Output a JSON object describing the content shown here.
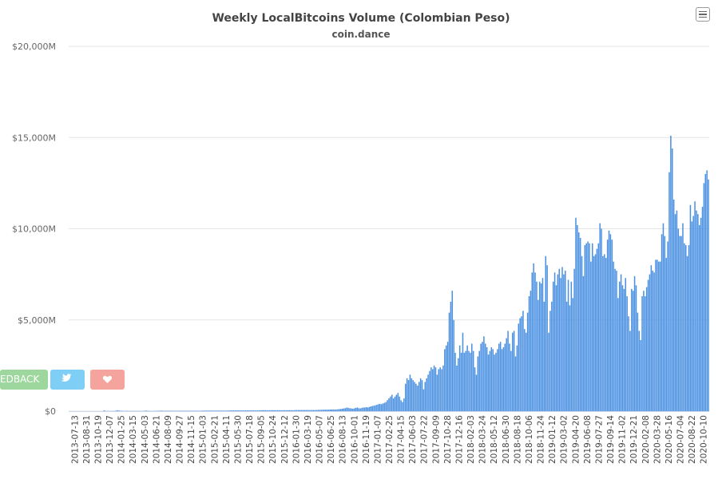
{
  "header": {
    "title": "Weekly LocalBitcoins Volume (Colombian Peso)",
    "subtitle": "coin.dance"
  },
  "buttons": {
    "feedback_label": "EDBACK",
    "twitter_icon": "twitter-icon",
    "heart_icon": "heart-icon"
  },
  "colors": {
    "bar": "#4a90e2",
    "grid": "#e6e6e6",
    "feedback": "#9ed79e",
    "twitter": "#7ecef5",
    "heart": "#f4a49c"
  },
  "chart_data": {
    "type": "bar",
    "title": "Weekly LocalBitcoins Volume (Colombian Peso)",
    "subtitle": "coin.dance",
    "xlabel": "",
    "ylabel": "",
    "ylim": [
      0,
      20000
    ],
    "y_unit": "M",
    "y_tick_labels": [
      "$0",
      "$5,000M",
      "$10,000M",
      "$15,000M",
      "$20,000M"
    ],
    "y_ticks": [
      0,
      5000,
      10000,
      15000,
      20000
    ],
    "x_tick_labels": [
      "2013-07-13",
      "2013-08-31",
      "2013-10-19",
      "2013-12-07",
      "2014-01-25",
      "2014-03-15",
      "2014-05-03",
      "2014-06-21",
      "2014-08-09",
      "2014-09-27",
      "2014-11-15",
      "2015-01-03",
      "2015-02-21",
      "2015-04-11",
      "2015-05-30",
      "2015-07-18",
      "2015-09-05",
      "2015-10-24",
      "2015-12-12",
      "2016-01-30",
      "2016-03-19",
      "2016-05-07",
      "2016-06-25",
      "2016-08-13",
      "2016-10-01",
      "2016-11-19",
      "2017-01-07",
      "2017-02-25",
      "2017-04-15",
      "2017-06-03",
      "2017-07-22",
      "2017-09-09",
      "2017-10-28",
      "2017-12-16",
      "2018-02-03",
      "2018-03-24",
      "2018-05-12",
      "2018-06-30",
      "2018-08-18",
      "2018-10-06",
      "2018-11-24",
      "2019-01-12",
      "2019-03-02",
      "2019-04-20",
      "2019-06-08",
      "2019-07-27",
      "2019-09-14",
      "2019-11-02",
      "2019-12-21",
      "2020-02-08",
      "2020-03-28",
      "2020-05-16",
      "2020-07-04",
      "2020-08-22",
      "2020-10-10"
    ],
    "grid": true,
    "legend": "none",
    "series": [
      {
        "values": [
          0,
          0,
          0,
          0,
          0,
          0,
          0,
          0,
          0,
          0,
          0,
          0,
          0,
          0,
          0,
          0,
          0,
          0,
          0,
          0,
          0,
          0,
          0,
          40,
          15,
          10,
          5,
          10,
          10,
          10,
          10,
          30,
          40,
          30,
          20,
          20,
          10,
          10,
          20,
          10,
          10,
          10,
          10,
          10,
          10,
          10,
          10,
          10,
          10,
          10,
          20,
          30,
          20,
          10,
          10,
          10,
          10,
          10,
          20,
          20,
          20,
          30,
          20,
          20,
          20,
          20,
          20,
          20,
          20,
          20,
          20,
          20,
          20,
          20,
          20,
          20,
          20,
          20,
          20,
          20,
          20,
          20,
          20,
          20,
          20,
          20,
          20,
          20,
          30,
          30,
          30,
          30,
          30,
          30,
          30,
          30,
          30,
          30,
          30,
          30,
          30,
          30,
          30,
          30,
          30,
          30,
          40,
          40,
          40,
          40,
          40,
          40,
          40,
          40,
          40,
          40,
          40,
          40,
          40,
          40,
          40,
          40,
          40,
          40,
          40,
          40,
          40,
          50,
          50,
          50,
          50,
          50,
          50,
          50,
          50,
          50,
          50,
          50,
          50,
          50,
          50,
          50,
          50,
          50,
          50,
          50,
          50,
          50,
          50,
          50,
          60,
          60,
          60,
          60,
          60,
          60,
          60,
          60,
          60,
          60,
          60,
          60,
          60,
          60,
          60,
          70,
          70,
          70,
          80,
          80,
          80,
          80,
          80,
          90,
          90,
          90,
          90,
          90,
          100,
          110,
          120,
          130,
          150,
          160,
          200,
          180,
          160,
          150,
          130,
          150,
          180,
          200,
          160,
          150,
          180,
          200,
          200,
          220,
          200,
          230,
          260,
          280,
          300,
          320,
          350,
          380,
          400,
          380,
          420,
          450,
          500,
          600,
          700,
          800,
          900,
          700,
          800,
          900,
          1000,
          800,
          600,
          500,
          700,
          1500,
          1800,
          1700,
          2000,
          1800,
          1700,
          1600,
          1500,
          1400,
          1600,
          1800,
          1700,
          1200,
          1600,
          1800,
          2000,
          2200,
          2400,
          2300,
          2500,
          2400,
          2000,
          2300,
          2400,
          2300,
          2500,
          3400,
          3600,
          3800,
          5400,
          6000,
          6600,
          5000,
          3200,
          2500,
          2900,
          3600,
          3200,
          4300,
          3200,
          3300,
          3600,
          3300,
          3200,
          3700,
          3300,
          2400,
          2000,
          3000,
          3300,
          3700,
          3800,
          4100,
          3700,
          3500,
          3100,
          3300,
          3500,
          3400,
          3100,
          3200,
          3400,
          3700,
          3800,
          3400,
          3500,
          3700,
          4000,
          4400,
          3700,
          3300,
          4300,
          4400,
          3000,
          3600,
          4800,
          5100,
          5200,
          5500,
          4500,
          4300,
          5400,
          6300,
          6600,
          7600,
          8100,
          7600,
          7100,
          6100,
          7100,
          7000,
          7300,
          6000,
          8500,
          8000,
          4300,
          5500,
          6000,
          7100,
          7600,
          6900,
          7500,
          7800,
          7300,
          7900,
          7500,
          7700,
          6000,
          7200,
          5800,
          7100,
          6200,
          7800,
          10600,
          10200,
          9800,
          9500,
          8500,
          7400,
          9100,
          9200,
          9300,
          9200,
          8200,
          9200,
          8500,
          8600,
          8900,
          9200,
          10300,
          10000,
          8500,
          8600,
          8400,
          9400,
          9900,
          9700,
          9400,
          8200,
          7800,
          7700,
          6200,
          7100,
          7500,
          6900,
          6700,
          7300,
          6300,
          5200,
          4400,
          6700,
          6600,
          7400,
          6900,
          5400,
          4400,
          3900,
          6300,
          6600,
          6300,
          6800,
          7200,
          7500,
          8000,
          7700,
          7600,
          8300,
          8300,
          8200,
          8200,
          9700,
          10300,
          9600,
          8400,
          9300,
          13100,
          15100,
          14400,
          11600,
          10800,
          11000,
          10000,
          9600,
          9600,
          10300,
          9200,
          9100,
          8500,
          9100,
          11300,
          10400,
          10700,
          11500,
          11000,
          10800,
          10200,
          10600,
          11200,
          12500,
          13000,
          13200,
          12700
        ],
        "color": "#4a90e2"
      }
    ]
  }
}
